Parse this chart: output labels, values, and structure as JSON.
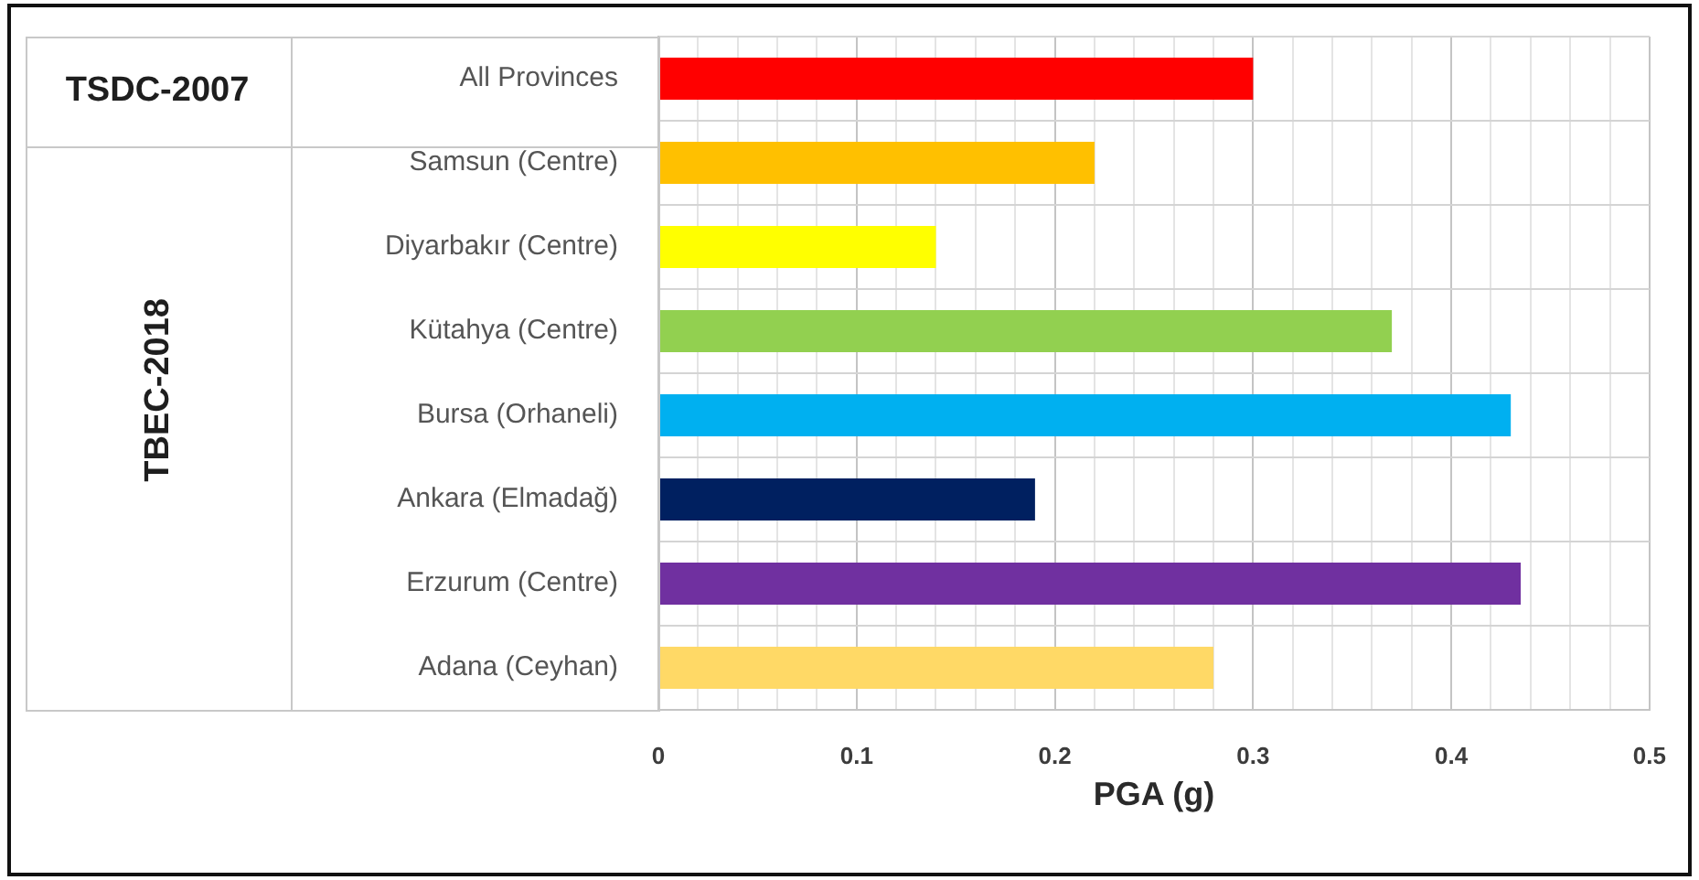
{
  "chart_data": {
    "type": "bar",
    "orientation": "horizontal",
    "categories": [
      "All Provinces",
      "Samsun (Centre)",
      "Diyarbakır (Centre)",
      "Kütahya (Centre)",
      "Bursa (Orhaneli)",
      "Ankara (Elmadağ)",
      "Erzurum (Centre)",
      "Adana (Ceyhan)"
    ],
    "values": [
      0.3,
      0.22,
      0.14,
      0.37,
      0.43,
      0.19,
      0.435,
      0.28
    ],
    "colors": [
      "#ff0000",
      "#ffc000",
      "#ffff00",
      "#92d050",
      "#00b0f0",
      "#002060",
      "#7030a0",
      "#ffd966"
    ],
    "xlabel": "PGA (g)",
    "xlim": [
      0,
      0.5
    ],
    "xticks": [
      0,
      {
        "value": 0.02,
        "label": null
      },
      {
        "value": 0.04,
        "label": null
      },
      {
        "value": 0.06,
        "label": null
      },
      {
        "value": 0.08,
        "label": null
      },
      0.1,
      {
        "value": 0.12,
        "label": null
      },
      {
        "value": 0.14,
        "label": null
      },
      {
        "value": 0.16,
        "label": null
      },
      {
        "value": 0.18,
        "label": null
      },
      0.2,
      {
        "value": 0.22,
        "label": null
      },
      {
        "value": 0.24,
        "label": null
      },
      {
        "value": 0.26,
        "label": null
      },
      {
        "value": 0.28,
        "label": null
      },
      0.3,
      {
        "value": 0.32,
        "label": null
      },
      {
        "value": 0.34,
        "label": null
      },
      {
        "value": 0.36,
        "label": null
      },
      {
        "value": 0.38,
        "label": null
      },
      0.4,
      {
        "value": 0.42,
        "label": null
      },
      {
        "value": 0.44,
        "label": null
      },
      {
        "value": 0.46,
        "label": null
      },
      {
        "value": 0.48,
        "label": null
      },
      0.5
    ],
    "grid": true,
    "annotations": [
      "TSDC-2007",
      "TBEC-2018"
    ]
  }
}
